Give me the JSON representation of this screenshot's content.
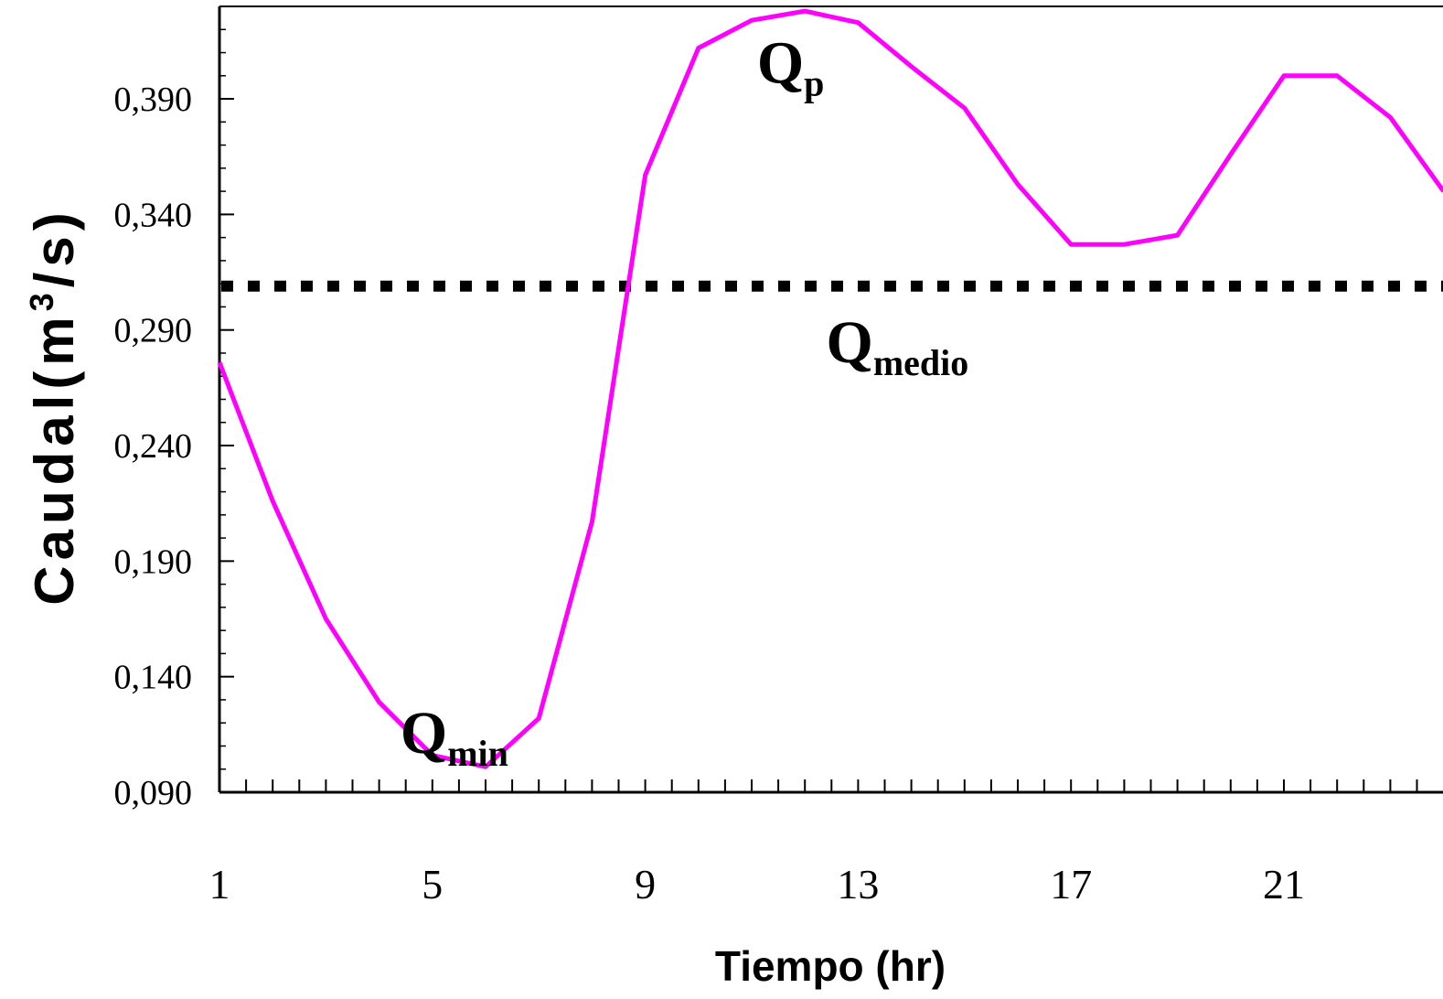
{
  "chart_data": {
    "type": "line",
    "xlabel": "Tiempo (hr)",
    "ylabel": {
      "prefix": "Caudal(m",
      "sup": "3",
      "suffix": "/s)"
    },
    "x_ticks": [
      "1",
      "5",
      "9",
      "13",
      "17",
      "21"
    ],
    "y_ticks": [
      "0,090",
      "0,140",
      "0,190",
      "0,240",
      "0,290",
      "0,340",
      "0,390"
    ],
    "xlim": [
      1,
      24
    ],
    "ylim": [
      0.09,
      0.43
    ],
    "grid": false,
    "series": [
      {
        "color": "#ff00ff",
        "x": [
          1,
          2,
          3,
          4,
          5,
          6,
          7,
          8,
          9,
          10,
          11,
          12,
          13,
          14,
          15,
          16,
          17,
          18,
          19,
          20,
          21,
          22,
          23,
          24
        ],
        "y": [
          0.276,
          0.216,
          0.165,
          0.129,
          0.106,
          0.101,
          0.122,
          0.207,
          0.357,
          0.412,
          0.424,
          0.428,
          0.423,
          0.404,
          0.386,
          0.353,
          0.327,
          0.327,
          0.331,
          0.366,
          0.4,
          0.4,
          0.382,
          0.35
        ]
      }
    ],
    "reference_line": {
      "y": 0.309,
      "style": "dotted",
      "color": "#000000"
    },
    "annotations": [
      {
        "main": "Q",
        "sub": "p",
        "x": 11.1,
        "y": 0.397
      },
      {
        "main": "Q",
        "sub": "medio",
        "x": 12.4,
        "y": 0.276
      },
      {
        "main": "Q",
        "sub": "min",
        "x": 4.4,
        "y": 0.107
      }
    ]
  }
}
